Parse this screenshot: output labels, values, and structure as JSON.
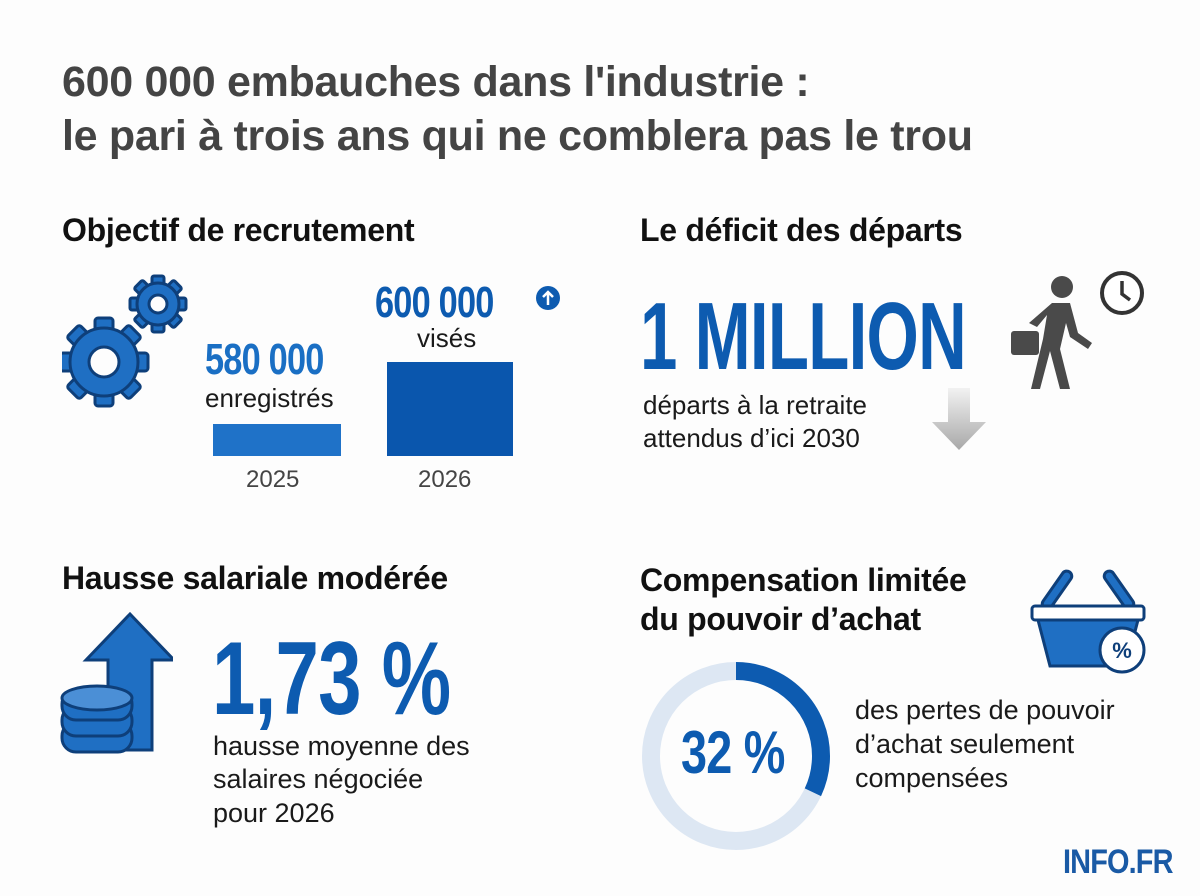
{
  "title": {
    "line1": "600 000 embauches dans l'industrie :",
    "line2": "le pari à trois ans qui ne comblera pas le trou"
  },
  "recruitment": {
    "heading": "Objectif de recrutement",
    "icon": "gears-icon",
    "bars": [
      {
        "year": "2025",
        "value": 580000,
        "value_label": "580 000",
        "caption": "enregistrés",
        "color": "#1f72c8"
      },
      {
        "year": "2026",
        "value": 600000,
        "value_label": "600 000",
        "caption": "visés",
        "color": "#0a56ad",
        "icon": "arrow-up-circle-icon"
      }
    ]
  },
  "departures": {
    "heading": "Le déficit des départs",
    "value": "1 MILLION",
    "line1": "départs à la retraite",
    "line2": "attendus d’ici 2030",
    "icons": [
      "walking-man-briefcase-icon",
      "clock-icon",
      "down-arrow-icon"
    ]
  },
  "salary": {
    "heading": "Hausse salariale modérée",
    "value": "1,73 %",
    "line1": "hausse moyenne des",
    "line2": "salaires négociée",
    "line3": "pour 2026",
    "icon": "coins-up-arrow-icon"
  },
  "compensation": {
    "heading_line1": "Compensation limitée",
    "heading_line2": "du pouvoir d’achat",
    "value": "32 %",
    "percent": 32,
    "line1": "des pertes de pouvoir",
    "line2": "d’achat seulement",
    "line3": "compensées",
    "icon": "shopping-basket-percent-icon"
  },
  "logo": "INFO.FR",
  "colors": {
    "accent": "#0d5bb0",
    "accent_light": "#1f72c8",
    "ring_track": "#dde7f3",
    "title": "#444444"
  }
}
